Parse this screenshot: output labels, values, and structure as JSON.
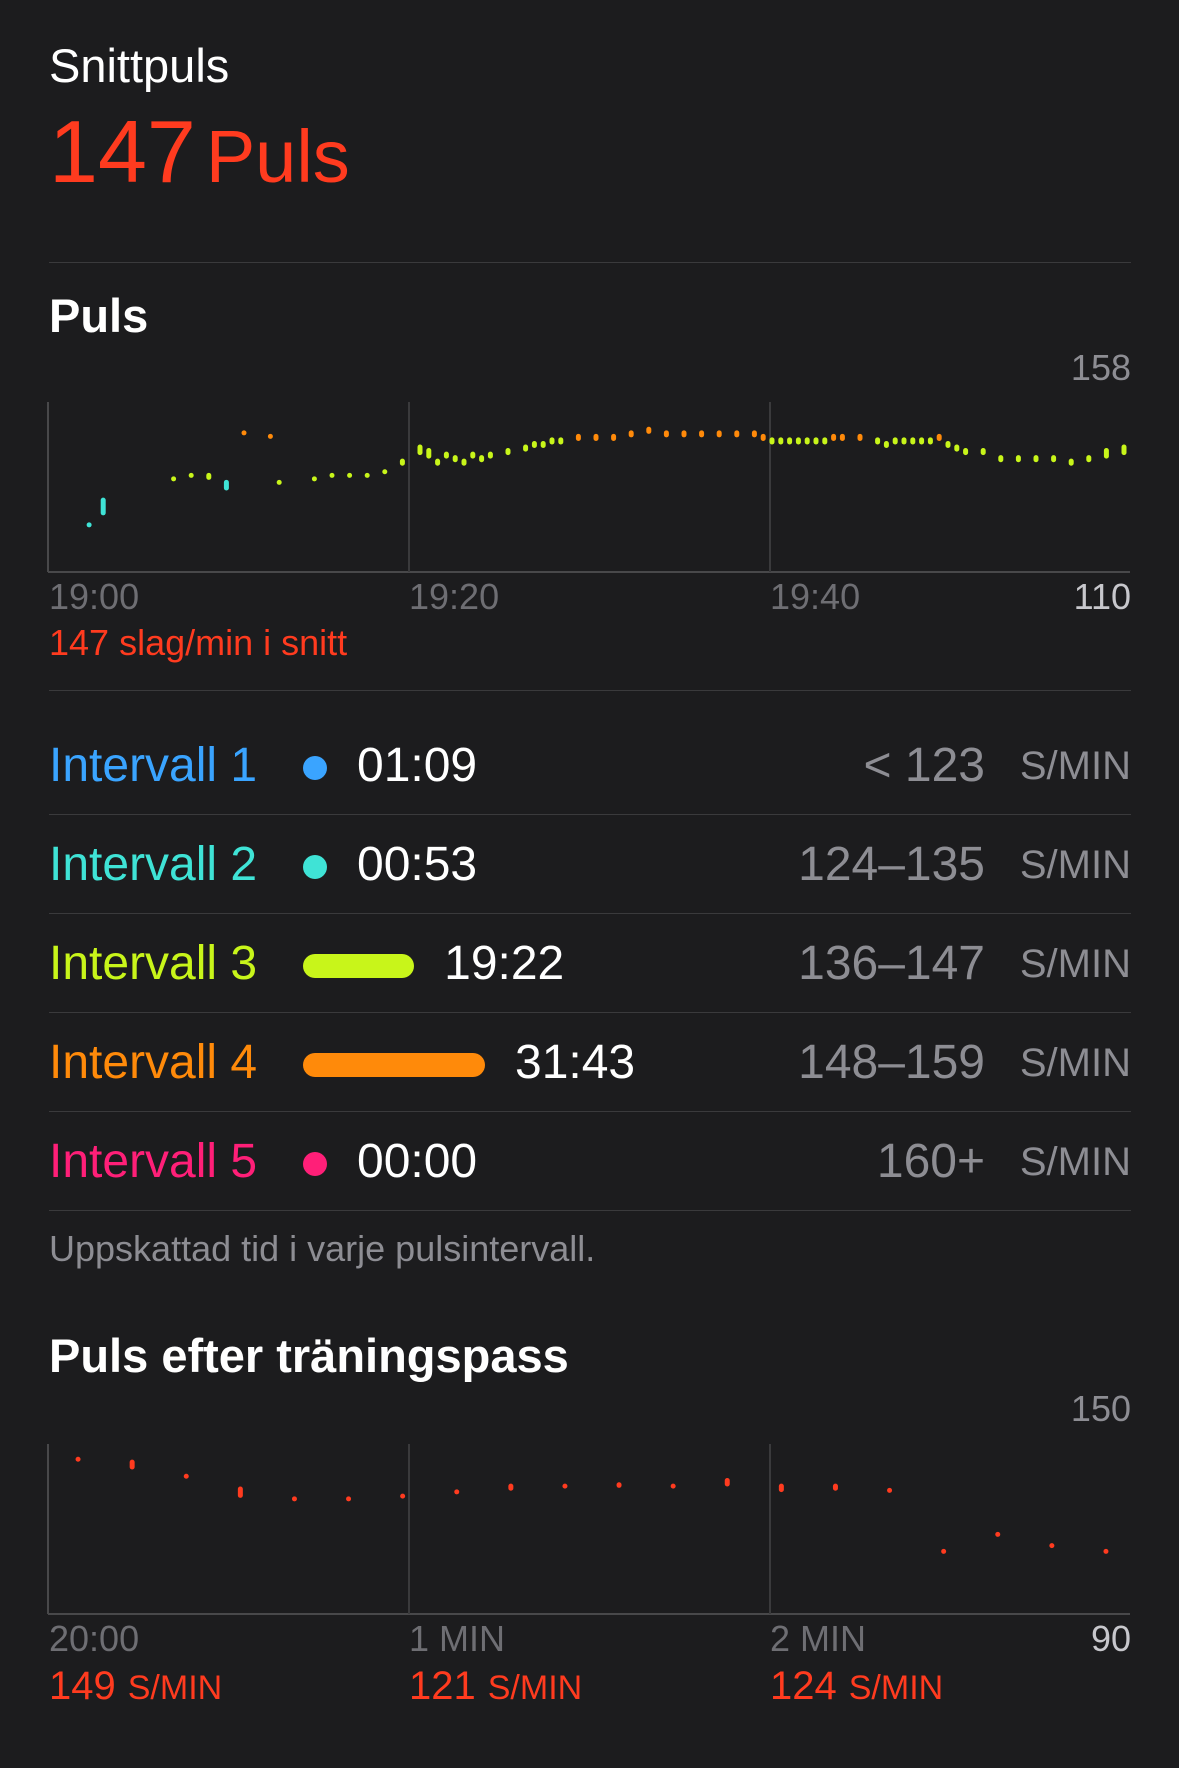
{
  "header": {
    "title": "Snittpuls",
    "avg_value": "147",
    "avg_unit": "Puls"
  },
  "hr_section": {
    "title": "Puls",
    "caption": "147 slag/min i snitt",
    "colors": {
      "z1": "#3aa4ff",
      "z2": "#3fe3d6",
      "z3": "#c8f51a",
      "z4": "#ff8a0a",
      "z5": "#ff1f78"
    }
  },
  "chart_data": [
    {
      "type": "range-bar",
      "title": "Puls",
      "x_tick_labels": [
        "19:00",
        "19:20",
        "19:40"
      ],
      "xlim_minutes": [
        0,
        60
      ],
      "ylim": [
        110,
        158
      ],
      "y_top_label": "158",
      "y_bottom_label": "110",
      "minutes": [
        1.2,
        2,
        6,
        7,
        8,
        9,
        10,
        11.5,
        12,
        14,
        15,
        16,
        17,
        18,
        19,
        20,
        20.5,
        21,
        21.5,
        22,
        22.5,
        23,
        23.5,
        24,
        25,
        26,
        26.5,
        27,
        27.5,
        28,
        29,
        30,
        31,
        32,
        33,
        34,
        35,
        36,
        37,
        38,
        39,
        39.5,
        40,
        40.5,
        41,
        41.5,
        42,
        42.5,
        43,
        43.5,
        44,
        45,
        46,
        46.5,
        47,
        47.5,
        48,
        48.5,
        49,
        49.5,
        50,
        50.5,
        51,
        52,
        53,
        54,
        55,
        56,
        57,
        58,
        59,
        60
      ],
      "low": [
        123,
        126,
        136,
        137,
        136,
        133,
        149,
        148,
        135,
        136,
        137,
        137,
        137,
        138,
        140,
        143,
        142,
        140,
        142,
        141,
        140,
        142,
        141,
        142,
        143,
        144,
        145,
        145,
        146,
        146,
        147,
        147,
        147,
        148,
        149,
        148,
        148,
        148,
        148,
        148,
        148,
        147,
        146,
        146,
        146,
        146,
        146,
        146,
        146,
        147,
        147,
        147,
        146,
        145,
        146,
        146,
        146,
        146,
        146,
        147,
        145,
        144,
        143,
        143,
        141,
        141,
        141,
        141,
        140,
        141,
        142,
        143
      ],
      "high": [
        124,
        131,
        137,
        138,
        138,
        136,
        150,
        149,
        136,
        137,
        138,
        138,
        138,
        139,
        142,
        146,
        145,
        142,
        144,
        143,
        142,
        144,
        143,
        144,
        145,
        146,
        147,
        147,
        148,
        148,
        149,
        149,
        149,
        150,
        151,
        150,
        150,
        150,
        150,
        150,
        150,
        149,
        148,
        148,
        148,
        148,
        148,
        148,
        148,
        149,
        149,
        149,
        148,
        147,
        148,
        148,
        148,
        148,
        148,
        149,
        147,
        146,
        145,
        145,
        143,
        143,
        143,
        143,
        142,
        143,
        145,
        146
      ]
    },
    {
      "type": "range-bar",
      "title": "Puls efter träningspass",
      "x_tick_labels": [
        "20:00",
        "1 MIN",
        "2 MIN"
      ],
      "xlim_seconds": [
        0,
        180
      ],
      "ylim": [
        90,
        150
      ],
      "y_top_label": "150",
      "y_bottom_label": "90",
      "seconds": [
        5,
        14,
        23,
        32,
        41,
        50,
        59,
        68,
        77,
        86,
        95,
        104,
        113,
        122,
        131,
        140,
        149,
        158,
        167,
        176
      ],
      "low": [
        144.5,
        141,
        138.5,
        131,
        130.5,
        130.5,
        131,
        132.5,
        133.5,
        135,
        134.5,
        135,
        135,
        133,
        133.5,
        134,
        112,
        118,
        114,
        112
      ],
      "high": [
        145.5,
        144.5,
        139.5,
        135,
        131.5,
        131.5,
        132.5,
        134,
        136,
        136,
        136.5,
        136,
        138,
        136,
        136,
        134.5,
        113,
        119,
        115,
        113
      ]
    }
  ],
  "zones": [
    {
      "name": "Intervall 1",
      "time": "01:09",
      "range": "< 123",
      "unit": "S/MIN",
      "color": "#3aa4ff",
      "minutes": 1.15
    },
    {
      "name": "Intervall 2",
      "time": "00:53",
      "range": "124–135",
      "unit": "S/MIN",
      "color": "#3fe3d6",
      "minutes": 0.88
    },
    {
      "name": "Intervall 3",
      "time": "19:22",
      "range": "136–147",
      "unit": "S/MIN",
      "color": "#c8f51a",
      "minutes": 19.37
    },
    {
      "name": "Intervall 4",
      "time": "31:43",
      "range": "148–159",
      "unit": "S/MIN",
      "color": "#ff8a0a",
      "minutes": 31.72
    },
    {
      "name": "Intervall 5",
      "time": "00:00",
      "range": "160+",
      "unit": "S/MIN",
      "color": "#ff1f78",
      "minutes": 0
    }
  ],
  "zones_footnote": "Uppskattad tid i varje pulsintervall.",
  "recovery": {
    "title": "Puls efter träningspass",
    "values": [
      {
        "value": "149",
        "unit": "S/MIN"
      },
      {
        "value": "121",
        "unit": "S/MIN"
      },
      {
        "value": "124",
        "unit": "S/MIN"
      }
    ]
  }
}
